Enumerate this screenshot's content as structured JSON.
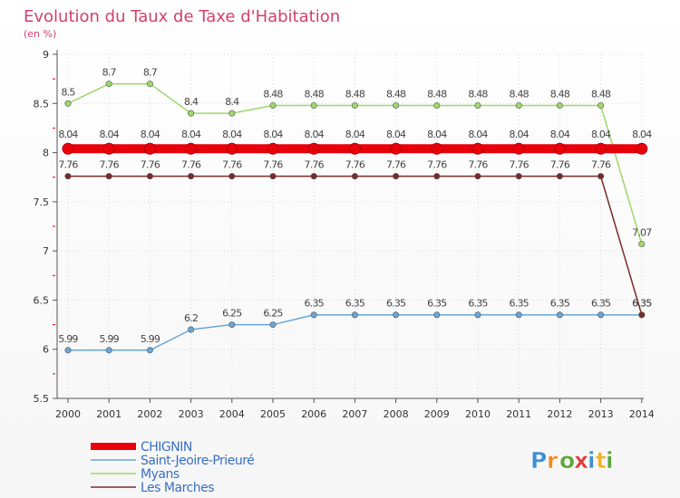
{
  "chart_data": {
    "type": "line",
    "title": "Evolution du Taux de Taxe d'Habitation",
    "subtitle": "(en %)",
    "xlabel": "",
    "ylabel": "",
    "x": [
      "2000",
      "2001",
      "2002",
      "2003",
      "2004",
      "2005",
      "2006",
      "2007",
      "2008",
      "2009",
      "2010",
      "2011",
      "2012",
      "2013",
      "2014"
    ],
    "ylim": [
      5.5,
      9
    ],
    "yticks": [
      5.5,
      6,
      6.5,
      7,
      7.5,
      8,
      8.5,
      9
    ],
    "ytick_labels": [
      "5.5",
      "6",
      "6.5",
      "7",
      "7.5",
      "8",
      "8.5",
      "9"
    ],
    "series": [
      {
        "name": "CHIGNIN",
        "color": "#e8000b",
        "values": [
          8.04,
          8.04,
          8.04,
          8.04,
          8.04,
          8.04,
          8.04,
          8.04,
          8.04,
          8.04,
          8.04,
          8.04,
          8.04,
          8.04,
          8.04
        ],
        "labels": [
          "8.04",
          "8.04",
          "8.04",
          "8.04",
          "8.04",
          "8.04",
          "8.04",
          "8.04",
          "8.04",
          "8.04",
          "8.04",
          "8.04",
          "8.04",
          "8.04",
          "8.04"
        ]
      },
      {
        "name": "Saint-Jeoire-Prieuré",
        "color": "#6aa6d6",
        "values": [
          5.99,
          5.99,
          5.99,
          6.2,
          6.25,
          6.25,
          6.35,
          6.35,
          6.35,
          6.35,
          6.35,
          6.35,
          6.35,
          6.35,
          6.35
        ],
        "labels": [
          "5.99",
          "5.99",
          "5.99",
          "6.2",
          "6.25",
          "6.25",
          "6.35",
          "6.35",
          "6.35",
          "6.35",
          "6.35",
          "6.35",
          "6.35",
          "6.35",
          "6.35"
        ]
      },
      {
        "name": "Myans",
        "color": "#9ed86a",
        "values": [
          8.5,
          8.7,
          8.7,
          8.4,
          8.4,
          8.48,
          8.48,
          8.48,
          8.48,
          8.48,
          8.48,
          8.48,
          8.48,
          8.48,
          7.07
        ],
        "labels": [
          "8.5",
          "8.7",
          "8.7",
          "8.4",
          "8.4",
          "8.48",
          "8.48",
          "8.48",
          "8.48",
          "8.48",
          "8.48",
          "8.48",
          "8.48",
          "8.48",
          "7.07"
        ]
      },
      {
        "name": "Les Marches",
        "color": "#7a2a2a",
        "values": [
          7.76,
          7.76,
          7.76,
          7.76,
          7.76,
          7.76,
          7.76,
          7.76,
          7.76,
          7.76,
          7.76,
          7.76,
          7.76,
          7.76,
          6.35
        ],
        "labels": [
          "7.76",
          "7.76",
          "7.76",
          "7.76",
          "7.76",
          "7.76",
          "7.76",
          "7.76",
          "7.76",
          "7.76",
          "7.76",
          "7.76",
          "7.76",
          "7.76",
          "6.35"
        ]
      }
    ],
    "legend_position": "bottom-left",
    "grid": true
  },
  "brand": {
    "letters": [
      "P",
      "r",
      "o",
      "x",
      "i",
      "t",
      "i"
    ],
    "colors": [
      "#3d8fd4",
      "#f08a24",
      "#5aa63a",
      "#e03a3a",
      "#3d8fd4",
      "#f0b428",
      "#5aa63a"
    ]
  }
}
